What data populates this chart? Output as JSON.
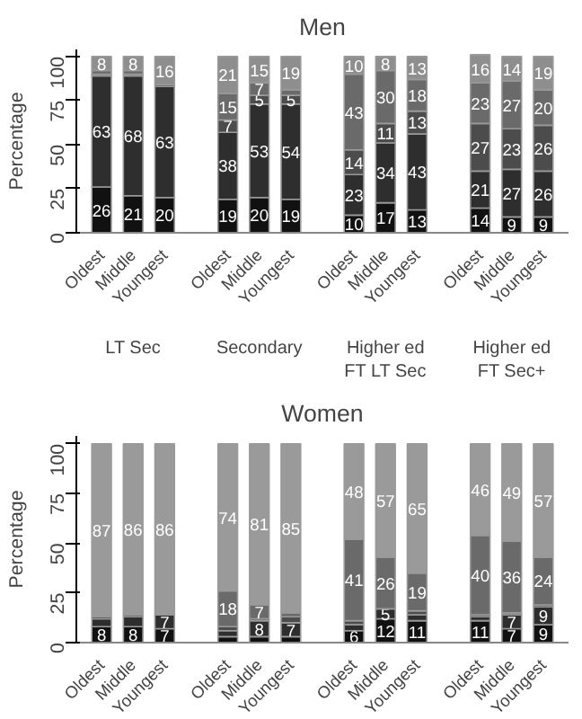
{
  "chart_data": [
    {
      "type": "bar",
      "title": "Men",
      "ylabel": "Percentage",
      "stacked": true,
      "grid": false,
      "data_labels": false,
      "categories": [
        "Oldest",
        "Middle",
        "Youngest",
        null,
        "Oldest",
        "Middle",
        "Youngest",
        null,
        "Oldest",
        "Middle",
        "Youngest",
        null,
        "Oldest",
        "Middle",
        "Youngest"
      ],
      "annotations": [
        "LT Sec",
        "Secondary",
        "Higher ed\nFT LT Sec",
        "Higher ed\nFT Sec+"
      ],
      "ylim": [
        0,
        104
      ],
      "yticks": [
        0,
        25,
        50,
        75,
        100
      ],
      "series": [
        {
          "color": "#111111",
          "values": [
            26,
            21,
            20,
            null,
            19,
            20,
            19,
            null,
            10,
            17,
            13,
            null,
            14,
            9,
            9
          ],
          "value_labels": [
            "26",
            "21",
            "20",
            null,
            "19",
            "20",
            "19",
            null,
            "10",
            "17",
            "13",
            null,
            "14",
            "9",
            "9"
          ]
        },
        {
          "color": "#2e2e2e",
          "values": [
            63,
            68,
            63,
            null,
            38,
            53,
            54,
            null,
            23,
            34,
            43,
            null,
            21,
            27,
            26
          ],
          "value_labels": [
            "63",
            "68",
            "63",
            null,
            "38",
            "53",
            "54",
            null,
            "23",
            "34",
            "43",
            null,
            "21",
            "27",
            "26"
          ]
        },
        {
          "color": "#4c4c4c",
          "values": [
            1,
            1,
            1,
            null,
            7,
            5,
            5,
            null,
            14,
            11,
            13,
            null,
            27,
            23,
            26
          ],
          "value_labels": [
            null,
            null,
            null,
            null,
            "7",
            "5",
            "5",
            null,
            "14",
            "11",
            "13",
            null,
            "27",
            "23",
            "26"
          ]
        },
        {
          "color": "#6a6a6a",
          "values": [
            2,
            2,
            0,
            null,
            15,
            7,
            3,
            null,
            43,
            30,
            18,
            null,
            23,
            27,
            20
          ],
          "value_labels": [
            null,
            null,
            null,
            null,
            "15",
            "7",
            null,
            null,
            "43",
            "30",
            "18",
            null,
            "23",
            "27",
            "20"
          ]
        },
        {
          "color": "#8e8e8e",
          "values": [
            8,
            8,
            16,
            null,
            21,
            15,
            19,
            null,
            10,
            8,
            13,
            null,
            16,
            14,
            19
          ],
          "value_labels": [
            "8",
            "8",
            "16",
            null,
            "21",
            "15",
            "19",
            null,
            "10",
            "8",
            "13",
            null,
            "16",
            "14",
            "19"
          ]
        }
      ]
    },
    {
      "type": "bar",
      "title": "Women",
      "ylabel": "Percentage",
      "stacked": true,
      "grid": false,
      "data_labels": false,
      "categories": [
        "Oldest",
        "Middle",
        "Youngest",
        null,
        "Oldest",
        "Middle",
        "Youngest",
        null,
        "Oldest",
        "Middle",
        "Youngest",
        null,
        "Oldest",
        "Middle",
        "Youngest"
      ],
      "ylim": [
        0,
        104
      ],
      "yticks": [
        0,
        25,
        50,
        75,
        100
      ],
      "series": [
        {
          "color": "#111111",
          "values": [
            8,
            8,
            7,
            null,
            3,
            3,
            3,
            null,
            6,
            12,
            11,
            null,
            11,
            7,
            9
          ],
          "value_labels": [
            "8",
            "8",
            "7",
            null,
            null,
            null,
            null,
            null,
            "6",
            "12",
            "11",
            null,
            "11",
            "7",
            "9"
          ]
        },
        {
          "color": "#2e2e2e",
          "values": [
            4,
            5,
            7,
            null,
            3,
            8,
            7,
            null,
            3,
            5,
            3,
            null,
            2,
            7,
            9
          ],
          "value_labels": [
            null,
            null,
            "7",
            null,
            null,
            "8",
            "7",
            null,
            null,
            "5",
            null,
            null,
            null,
            "7",
            "9"
          ]
        },
        {
          "color": "#4c4c4c",
          "values": [
            1,
            1,
            0,
            null,
            2,
            1,
            3,
            null,
            2,
            0,
            2,
            null,
            1,
            1,
            1
          ],
          "value_labels": [
            null,
            null,
            null,
            null,
            null,
            null,
            null,
            null,
            null,
            null,
            null,
            null,
            null,
            null,
            null
          ]
        },
        {
          "color": "#6a6a6a",
          "values": [
            0,
            0,
            0,
            null,
            18,
            7,
            2,
            null,
            41,
            26,
            19,
            null,
            40,
            36,
            24
          ],
          "value_labels": [
            null,
            null,
            null,
            null,
            "18",
            "7",
            null,
            null,
            "41",
            "26",
            "19",
            null,
            "40",
            "36",
            "24"
          ]
        },
        {
          "color": "#9a9a9a",
          "values": [
            87,
            86,
            86,
            null,
            74,
            81,
            85,
            null,
            48,
            57,
            65,
            null,
            46,
            49,
            57
          ],
          "value_labels": [
            "87",
            "86",
            "86",
            null,
            "74",
            "81",
            "85",
            null,
            "48",
            "57",
            "65",
            null,
            "46",
            "49",
            "57"
          ]
        }
      ]
    }
  ]
}
